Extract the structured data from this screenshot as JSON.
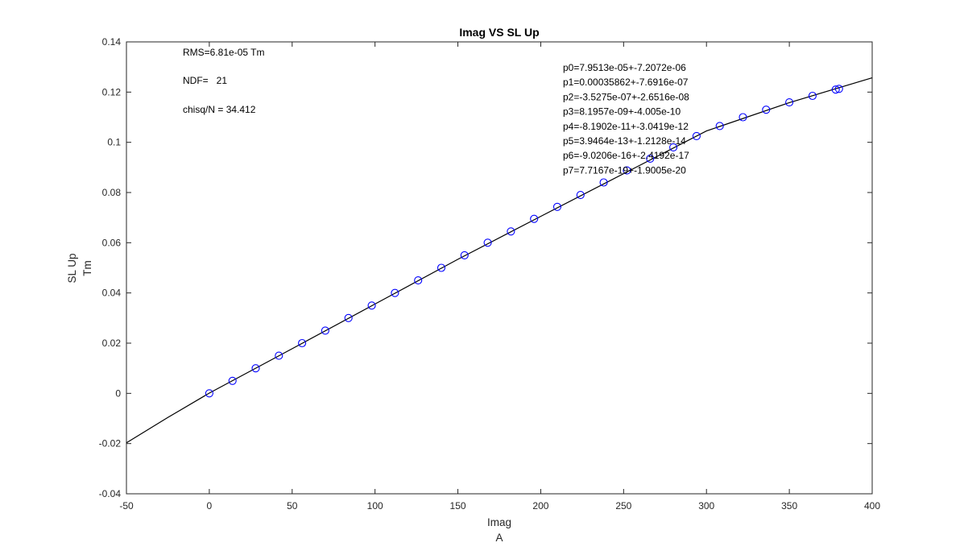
{
  "chart_data": {
    "type": "scatter",
    "title": "Imag VS SL Up",
    "xlabel": [
      "Imag",
      "A"
    ],
    "ylabel": [
      "SL Up",
      "Tm"
    ],
    "xlim": [
      -50,
      400
    ],
    "ylim": [
      -0.04,
      0.14
    ],
    "xticks": [
      "-50",
      "0",
      "50",
      "100",
      "150",
      "200",
      "250",
      "300",
      "350",
      "400"
    ],
    "yticks": [
      "-0.04",
      "-0.02",
      "0",
      "0.02",
      "0.04",
      "0.06",
      "0.08",
      "0.1",
      "0.12",
      "0.14"
    ],
    "grid": false,
    "series": [
      {
        "marker": "circle",
        "color": "#0000ff",
        "x": [
          0,
          14,
          28,
          42,
          56,
          70,
          84,
          98,
          112,
          126,
          140,
          154,
          168,
          182,
          196,
          210,
          224,
          238,
          252,
          266,
          280,
          294,
          308,
          322,
          336,
          350,
          364,
          378,
          380
        ],
        "y": [
          0,
          0.005,
          0.01,
          0.015,
          0.02,
          0.025,
          0.03,
          0.035,
          0.04,
          0.045,
          0.05,
          0.055,
          0.06,
          0.0645,
          0.0695,
          0.0743,
          0.079,
          0.084,
          0.0888,
          0.0935,
          0.098,
          0.1025,
          0.1065,
          0.11,
          0.113,
          0.1159,
          0.1185,
          0.121,
          0.1213
        ]
      },
      {
        "line": "solid",
        "color": "#000000",
        "x": [
          -50,
          -25,
          0,
          50,
          100,
          150,
          200,
          250,
          300,
          350,
          400
        ],
        "y": [
          -0.0197,
          -0.0096,
          0.0001,
          0.0178,
          0.0356,
          0.0534,
          0.0705,
          0.0875,
          0.1045,
          0.1158,
          0.1257
        ]
      }
    ],
    "annotations": {
      "left": [
        "RMS=6.81e-05 Tm",
        "NDF=   21",
        "chisq/N = 34.412"
      ],
      "right": [
        "p0=7.9513e-05+-7.2072e-06",
        "p1=0.00035862+-7.6916e-07",
        "p2=-3.5275e-07+-2.6516e-08",
        "p3=8.1957e-09+-4.005e-10",
        "p4=-8.1902e-11+-3.0419e-12",
        "p5=3.9464e-13+-1.2128e-14",
        "p6=-9.0206e-16+-2.4192e-17",
        "p7=7.7167e-19+-1.9005e-20"
      ]
    }
  }
}
